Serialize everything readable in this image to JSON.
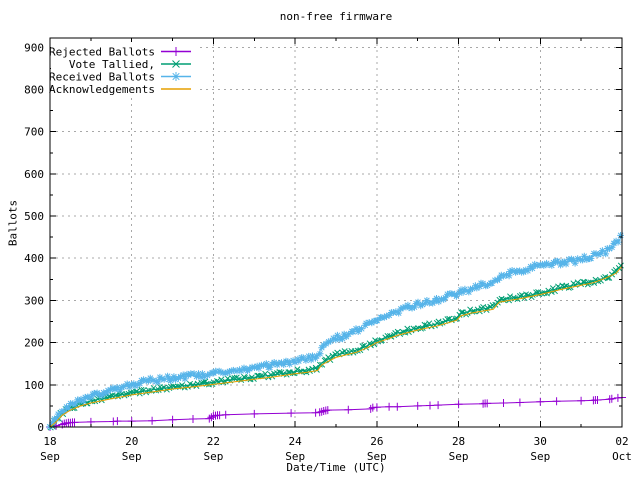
{
  "chart_data": {
    "type": "line",
    "title": "non-free firmware",
    "xlabel": "Date/Time (UTC)",
    "ylabel": "Ballots",
    "x_axis": {
      "unit": "days since 18 Sep 00:00 UTC",
      "range_days": [
        0,
        14
      ],
      "major_ticks": [
        {
          "day": 0,
          "line1": "18",
          "line2": "Sep"
        },
        {
          "day": 2,
          "line1": "20",
          "line2": "Sep"
        },
        {
          "day": 4,
          "line1": "22",
          "line2": "Sep"
        },
        {
          "day": 6,
          "line1": "24",
          "line2": "Sep"
        },
        {
          "day": 8,
          "line1": "26",
          "line2": "Sep"
        },
        {
          "day": 10,
          "line1": "28",
          "line2": "Sep"
        },
        {
          "day": 12,
          "line1": "30",
          "line2": "Sep"
        },
        {
          "day": 14,
          "line1": "02",
          "line2": "Oct"
        }
      ],
      "minor_tick_days": [
        1,
        3,
        5,
        7,
        9,
        11,
        13
      ]
    },
    "y_axis": {
      "range": [
        0,
        922
      ],
      "major_ticks": [
        0,
        100,
        200,
        300,
        400,
        500,
        600,
        700,
        800,
        900
      ],
      "minor_ticks": [
        50,
        150,
        250,
        350,
        450,
        550,
        650,
        750,
        850
      ]
    },
    "grid": {
      "show": true,
      "color": "#a8a8a8",
      "dash": "2 4"
    },
    "legend": {
      "position": "top-left",
      "opaque": true
    },
    "series": [
      {
        "name": "Rejected Ballots",
        "color": "#9400d3",
        "marker": "plus",
        "band": false,
        "points": [
          [
            0,
            0
          ],
          [
            0.15,
            3
          ],
          [
            0.3,
            6
          ],
          [
            0.35,
            8
          ],
          [
            0.4,
            9
          ],
          [
            0.45,
            10
          ],
          [
            0.5,
            10
          ],
          [
            0.55,
            11
          ],
          [
            0.6,
            11
          ],
          [
            1,
            12
          ],
          [
            1.55,
            13
          ],
          [
            1.65,
            14
          ],
          [
            2,
            14
          ],
          [
            2.5,
            15
          ],
          [
            3,
            17
          ],
          [
            3.5,
            19
          ],
          [
            3.9,
            20
          ],
          [
            3.95,
            23
          ],
          [
            4,
            26
          ],
          [
            4.05,
            27
          ],
          [
            4.1,
            28
          ],
          [
            4.15,
            28
          ],
          [
            4.3,
            29
          ],
          [
            5,
            31
          ],
          [
            5.9,
            33
          ],
          [
            6.5,
            34
          ],
          [
            6.6,
            35
          ],
          [
            6.65,
            36
          ],
          [
            6.7,
            38
          ],
          [
            6.75,
            39
          ],
          [
            6.8,
            40
          ],
          [
            7.3,
            41
          ],
          [
            7.85,
            43
          ],
          [
            7.9,
            46
          ],
          [
            8,
            47
          ],
          [
            8.3,
            48
          ],
          [
            8.5,
            48
          ],
          [
            9,
            50
          ],
          [
            9.3,
            51
          ],
          [
            9.5,
            52
          ],
          [
            10,
            54
          ],
          [
            10.6,
            55
          ],
          [
            10.65,
            56
          ],
          [
            10.7,
            56
          ],
          [
            11.1,
            57
          ],
          [
            11.5,
            58
          ],
          [
            12,
            60
          ],
          [
            12.4,
            61
          ],
          [
            13,
            62
          ],
          [
            13.3,
            63
          ],
          [
            13.35,
            64
          ],
          [
            13.4,
            64
          ],
          [
            13.7,
            66
          ],
          [
            13.75,
            67
          ],
          [
            13.9,
            69
          ],
          [
            14,
            70
          ]
        ]
      },
      {
        "name": "Vote Tallied,",
        "color": "#009e73",
        "marker": "cross",
        "band": true,
        "points": [
          [
            0,
            0
          ],
          [
            0.1,
            10
          ],
          [
            0.2,
            22
          ],
          [
            0.3,
            33
          ],
          [
            0.5,
            45
          ],
          [
            0.75,
            55
          ],
          [
            1,
            62
          ],
          [
            1.25,
            67
          ],
          [
            1.5,
            72
          ],
          [
            1.75,
            77
          ],
          [
            2,
            81
          ],
          [
            2.5,
            88
          ],
          [
            3,
            95
          ],
          [
            3.5,
            100
          ],
          [
            4,
            106
          ],
          [
            4.5,
            112
          ],
          [
            5,
            118
          ],
          [
            5.5,
            124
          ],
          [
            6,
            131
          ],
          [
            6.3,
            135
          ],
          [
            6.55,
            140
          ],
          [
            6.65,
            152
          ],
          [
            6.8,
            160
          ],
          [
            7,
            170
          ],
          [
            7.25,
            176
          ],
          [
            7.5,
            182
          ],
          [
            7.75,
            192
          ],
          [
            8,
            205
          ],
          [
            8.25,
            213
          ],
          [
            8.5,
            222
          ],
          [
            8.75,
            229
          ],
          [
            9,
            235
          ],
          [
            9.25,
            240
          ],
          [
            9.5,
            245
          ],
          [
            9.75,
            252
          ],
          [
            9.95,
            258
          ],
          [
            10.05,
            268
          ],
          [
            10.3,
            275
          ],
          [
            10.6,
            280
          ],
          [
            10.85,
            284
          ],
          [
            10.95,
            296
          ],
          [
            11,
            301
          ],
          [
            11.25,
            305
          ],
          [
            11.5,
            308
          ],
          [
            12,
            317
          ],
          [
            12.5,
            330
          ],
          [
            13,
            340
          ],
          [
            13.3,
            346
          ],
          [
            13.5,
            351
          ],
          [
            13.7,
            358
          ],
          [
            13.85,
            368
          ],
          [
            14,
            386
          ]
        ]
      },
      {
        "name": "Received Ballots",
        "color": "#56b4e9",
        "marker": "asterisk",
        "band": true,
        "points": [
          [
            0,
            0
          ],
          [
            0.1,
            14
          ],
          [
            0.2,
            28
          ],
          [
            0.3,
            40
          ],
          [
            0.45,
            50
          ],
          [
            0.6,
            57
          ],
          [
            0.8,
            65
          ],
          [
            1,
            73
          ],
          [
            1.25,
            80
          ],
          [
            1.5,
            88
          ],
          [
            1.75,
            95
          ],
          [
            2,
            101
          ],
          [
            2.25,
            106
          ],
          [
            2.5,
            110
          ],
          [
            3,
            116
          ],
          [
            3.5,
            122
          ],
          [
            4,
            127
          ],
          [
            4.5,
            134
          ],
          [
            5,
            141
          ],
          [
            5.5,
            148
          ],
          [
            6,
            156
          ],
          [
            6.3,
            162
          ],
          [
            6.55,
            170
          ],
          [
            6.65,
            188
          ],
          [
            6.8,
            199
          ],
          [
            7,
            210
          ],
          [
            7.25,
            219
          ],
          [
            7.5,
            228
          ],
          [
            7.75,
            240
          ],
          [
            8,
            255
          ],
          [
            8.25,
            265
          ],
          [
            8.5,
            274
          ],
          [
            8.75,
            283
          ],
          [
            9,
            290
          ],
          [
            9.25,
            296
          ],
          [
            9.5,
            302
          ],
          [
            9.75,
            310
          ],
          [
            10,
            317
          ],
          [
            10.3,
            326
          ],
          [
            10.6,
            336
          ],
          [
            10.85,
            342
          ],
          [
            10.95,
            352
          ],
          [
            11,
            358
          ],
          [
            11.25,
            365
          ],
          [
            11.5,
            371
          ],
          [
            11.75,
            377
          ],
          [
            12,
            383
          ],
          [
            12.25,
            387
          ],
          [
            12.5,
            390
          ],
          [
            12.75,
            393
          ],
          [
            13,
            396
          ],
          [
            13.2,
            402
          ],
          [
            13.4,
            409
          ],
          [
            13.6,
            417
          ],
          [
            13.75,
            425
          ],
          [
            13.9,
            440
          ],
          [
            14,
            452
          ]
        ]
      },
      {
        "name": "Acknowledgements",
        "color": "#e69f00",
        "marker": "none",
        "band": false,
        "points": [
          [
            0,
            0
          ],
          [
            0.15,
            12
          ],
          [
            0.3,
            28
          ],
          [
            0.5,
            40
          ],
          [
            0.75,
            50
          ],
          [
            1,
            57
          ],
          [
            1.5,
            67
          ],
          [
            2,
            76
          ],
          [
            2.5,
            83
          ],
          [
            3,
            90
          ],
          [
            3.5,
            95
          ],
          [
            4,
            101
          ],
          [
            4.5,
            107
          ],
          [
            5,
            113
          ],
          [
            5.5,
            119
          ],
          [
            6,
            126
          ],
          [
            6.3,
            130
          ],
          [
            6.55,
            134
          ],
          [
            6.65,
            147
          ],
          [
            6.8,
            155
          ],
          [
            7,
            165
          ],
          [
            7.5,
            177
          ],
          [
            7.75,
            187
          ],
          [
            8,
            200
          ],
          [
            8.25,
            208
          ],
          [
            8.5,
            217
          ],
          [
            9,
            230
          ],
          [
            9.5,
            240
          ],
          [
            9.95,
            253
          ],
          [
            10.05,
            263
          ],
          [
            10.3,
            270
          ],
          [
            10.6,
            275
          ],
          [
            10.85,
            279
          ],
          [
            10.95,
            291
          ],
          [
            11,
            296
          ],
          [
            11.5,
            304
          ],
          [
            12,
            314
          ],
          [
            12.5,
            326
          ],
          [
            13,
            336
          ],
          [
            13.3,
            342
          ],
          [
            13.6,
            353
          ],
          [
            13.85,
            364
          ],
          [
            14,
            381
          ]
        ]
      }
    ]
  }
}
